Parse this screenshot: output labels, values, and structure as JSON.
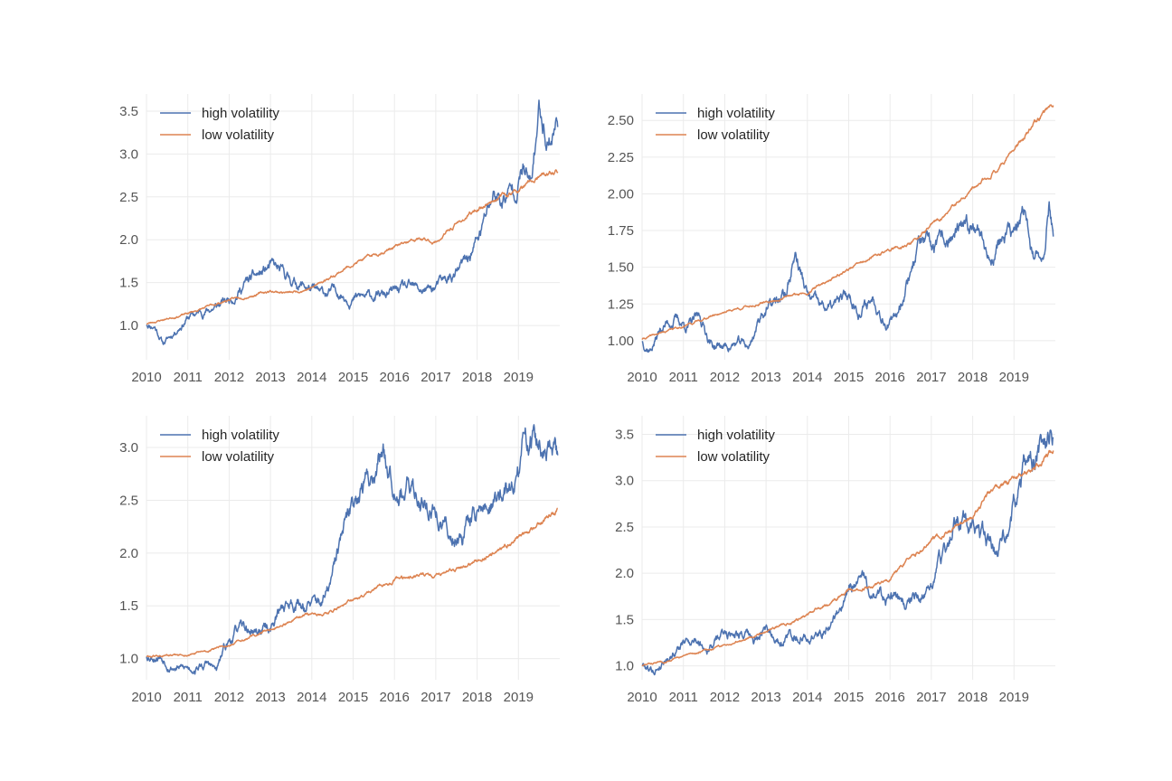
{
  "colors": {
    "high": "#4c72b0",
    "low": "#dd8452",
    "grid": "#ebebeb",
    "tick_text": "#555555"
  },
  "chart_data": [
    {
      "type": "line",
      "panel": "top-left",
      "xlim": [
        2010.0,
        2020.0
      ],
      "ylim": [
        0.6,
        3.7
      ],
      "xticks": [
        2010,
        2011,
        2012,
        2013,
        2014,
        2015,
        2016,
        2017,
        2018,
        2019
      ],
      "xtick_labels": [
        "2010",
        "2011",
        "2012",
        "2013",
        "2014",
        "2015",
        "2016",
        "2017",
        "2018",
        "2019"
      ],
      "yticks": [
        1.0,
        1.5,
        2.0,
        2.5,
        3.0,
        3.5
      ],
      "ytick_labels": [
        "1.0",
        "1.5",
        "2.0",
        "2.5",
        "3.0",
        "3.5"
      ],
      "grid": true,
      "legend": "top-left",
      "series": [
        {
          "name": "high volatility",
          "color": "#4c72b0",
          "noise": 0.025,
          "seed": 11,
          "x": [
            2010.0,
            2010.2,
            2010.4,
            2010.6,
            2010.8,
            2011.0,
            2011.3,
            2011.7,
            2012.0,
            2012.4,
            2012.8,
            2013.0,
            2013.3,
            2013.6,
            2013.9,
            2014.2,
            2014.6,
            2015.0,
            2015.4,
            2015.8,
            2016.2,
            2016.6,
            2016.9,
            2017.2,
            2017.5,
            2017.8,
            2018.1,
            2018.4,
            2018.6,
            2018.9,
            2019.1,
            2019.3,
            2019.5,
            2019.6,
            2019.7,
            2019.8,
            2019.95
          ],
          "y": [
            1.02,
            1.0,
            0.8,
            0.88,
            1.0,
            1.1,
            1.15,
            1.22,
            1.3,
            1.5,
            1.6,
            1.68,
            1.58,
            1.5,
            1.45,
            1.35,
            1.4,
            1.32,
            1.33,
            1.35,
            1.42,
            1.4,
            1.42,
            1.5,
            1.6,
            1.78,
            2.1,
            2.55,
            2.45,
            2.6,
            2.85,
            2.6,
            3.5,
            3.4,
            3.2,
            3.25,
            3.4
          ]
        },
        {
          "name": "low volatility",
          "color": "#dd8452",
          "noise": 0.006,
          "seed": 23,
          "x": [
            2010.0,
            2011.0,
            2012.0,
            2013.0,
            2013.5,
            2014.0,
            2015.0,
            2016.0,
            2016.6,
            2017.0,
            2017.5,
            2018.0,
            2018.5,
            2019.0,
            2019.5,
            2019.95
          ],
          "y": [
            1.02,
            1.14,
            1.3,
            1.4,
            1.38,
            1.44,
            1.72,
            1.92,
            2.0,
            1.97,
            2.18,
            2.35,
            2.5,
            2.57,
            2.72,
            2.8
          ]
        }
      ]
    },
    {
      "type": "line",
      "panel": "top-right",
      "xlim": [
        2010.0,
        2020.0
      ],
      "ylim": [
        0.87,
        2.68
      ],
      "xticks": [
        2010,
        2011,
        2012,
        2013,
        2014,
        2015,
        2016,
        2017,
        2018,
        2019
      ],
      "xtick_labels": [
        "2010",
        "2011",
        "2012",
        "2013",
        "2014",
        "2015",
        "2016",
        "2017",
        "2018",
        "2019"
      ],
      "yticks": [
        1.0,
        1.25,
        1.5,
        1.75,
        2.0,
        2.25,
        2.5
      ],
      "ytick_labels": [
        "1.00",
        "1.25",
        "1.50",
        "1.75",
        "2.00",
        "2.25",
        "2.50"
      ],
      "grid": true,
      "legend": "top-left",
      "series": [
        {
          "name": "high volatility",
          "color": "#4c72b0",
          "noise": 0.02,
          "seed": 37,
          "x": [
            2010.0,
            2010.2,
            2010.5,
            2010.8,
            2011.1,
            2011.4,
            2011.7,
            2012.0,
            2012.3,
            2012.6,
            2012.9,
            2013.2,
            2013.5,
            2013.7,
            2014.0,
            2014.3,
            2014.6,
            2015.0,
            2015.3,
            2015.6,
            2015.9,
            2016.1,
            2016.4,
            2016.7,
            2017.0,
            2017.3,
            2017.6,
            2017.9,
            2018.1,
            2018.4,
            2018.7,
            2019.0,
            2019.3,
            2019.5,
            2019.7,
            2019.85,
            2019.95
          ],
          "y": [
            1.0,
            0.95,
            1.1,
            1.15,
            1.1,
            1.15,
            0.97,
            0.96,
            0.98,
            0.96,
            1.2,
            1.25,
            1.32,
            1.6,
            1.3,
            1.22,
            1.22,
            1.3,
            1.2,
            1.3,
            1.15,
            1.12,
            1.4,
            1.68,
            1.6,
            1.65,
            1.72,
            1.72,
            1.85,
            1.55,
            1.7,
            1.72,
            1.85,
            1.52,
            1.6,
            1.95,
            1.76
          ]
        },
        {
          "name": "low volatility",
          "color": "#dd8452",
          "noise": 0.004,
          "seed": 41,
          "x": [
            2010.0,
            2011.0,
            2012.0,
            2013.0,
            2014.0,
            2015.0,
            2016.0,
            2016.5,
            2017.0,
            2018.0,
            2018.5,
            2019.0,
            2019.5,
            2019.95
          ],
          "y": [
            1.01,
            1.1,
            1.2,
            1.26,
            1.33,
            1.49,
            1.62,
            1.66,
            1.78,
            2.02,
            2.15,
            2.3,
            2.47,
            2.62
          ]
        }
      ]
    },
    {
      "type": "line",
      "panel": "bottom-left",
      "xlim": [
        2010.0,
        2020.0
      ],
      "ylim": [
        0.8,
        3.3
      ],
      "xticks": [
        2010,
        2011,
        2012,
        2013,
        2014,
        2015,
        2016,
        2017,
        2018,
        2019
      ],
      "xtick_labels": [
        "2010",
        "2011",
        "2012",
        "2013",
        "2014",
        "2015",
        "2016",
        "2017",
        "2018",
        "2019"
      ],
      "yticks": [
        1.0,
        1.5,
        2.0,
        2.5,
        3.0
      ],
      "ytick_labels": [
        "1.0",
        "1.5",
        "2.0",
        "2.5",
        "3.0"
      ],
      "grid": true,
      "legend": "top-left",
      "series": [
        {
          "name": "high volatility",
          "color": "#4c72b0",
          "noise": 0.025,
          "seed": 53,
          "x": [
            2010.0,
            2010.3,
            2010.6,
            2010.9,
            2011.2,
            2011.5,
            2011.7,
            2011.9,
            2012.2,
            2012.6,
            2013.0,
            2013.3,
            2013.6,
            2014.0,
            2014.3,
            2014.5,
            2014.7,
            2014.9,
            2015.1,
            2015.4,
            2015.7,
            2016.0,
            2016.3,
            2016.6,
            2016.9,
            2017.1,
            2017.4,
            2017.7,
            2018.0,
            2018.3,
            2018.6,
            2018.9,
            2019.1,
            2019.3,
            2019.6,
            2019.8,
            2019.95
          ],
          "y": [
            1.03,
            1.05,
            0.95,
            0.9,
            0.92,
            0.95,
            0.88,
            1.1,
            1.28,
            1.25,
            1.3,
            1.5,
            1.55,
            1.5,
            1.55,
            1.75,
            2.1,
            2.3,
            2.6,
            2.7,
            3.0,
            2.75,
            2.6,
            2.55,
            2.45,
            2.3,
            2.15,
            2.25,
            2.4,
            2.45,
            2.55,
            2.6,
            2.95,
            3.1,
            2.95,
            2.9,
            2.85
          ]
        },
        {
          "name": "low volatility",
          "color": "#dd8452",
          "noise": 0.006,
          "seed": 61,
          "x": [
            2010.0,
            2011.0,
            2012.0,
            2013.0,
            2014.0,
            2014.4,
            2015.0,
            2016.0,
            2016.5,
            2017.0,
            2017.5,
            2018.0,
            2018.5,
            2019.0,
            2019.5,
            2019.95
          ],
          "y": [
            1.02,
            1.03,
            1.12,
            1.28,
            1.42,
            1.44,
            1.55,
            1.75,
            1.8,
            1.79,
            1.84,
            1.92,
            2.02,
            2.14,
            2.28,
            2.4
          ]
        }
      ]
    },
    {
      "type": "line",
      "panel": "bottom-right",
      "xlim": [
        2010.0,
        2020.0
      ],
      "ylim": [
        0.85,
        3.7
      ],
      "xticks": [
        2010,
        2011,
        2012,
        2013,
        2014,
        2015,
        2016,
        2017,
        2018,
        2019
      ],
      "xtick_labels": [
        "2010",
        "2011",
        "2012",
        "2013",
        "2014",
        "2015",
        "2016",
        "2017",
        "2018",
        "2019"
      ],
      "yticks": [
        1.0,
        1.5,
        2.0,
        2.5,
        3.0,
        3.5
      ],
      "ytick_labels": [
        "1.0",
        "1.5",
        "2.0",
        "2.5",
        "3.0",
        "3.5"
      ],
      "grid": true,
      "legend": "top-left",
      "series": [
        {
          "name": "high volatility",
          "color": "#4c72b0",
          "noise": 0.025,
          "seed": 79,
          "x": [
            2010.0,
            2010.3,
            2010.6,
            2011.0,
            2011.3,
            2011.6,
            2012.0,
            2012.4,
            2012.7,
            2013.0,
            2013.3,
            2013.6,
            2014.0,
            2014.3,
            2014.6,
            2015.0,
            2015.3,
            2015.6,
            2016.0,
            2016.3,
            2016.6,
            2017.0,
            2017.3,
            2017.6,
            2017.9,
            2018.2,
            2018.5,
            2018.8,
            2019.0,
            2019.3,
            2019.6,
            2019.8,
            2019.95
          ],
          "y": [
            1.02,
            0.95,
            1.1,
            1.25,
            1.3,
            1.2,
            1.35,
            1.4,
            1.25,
            1.35,
            1.3,
            1.35,
            1.3,
            1.35,
            1.5,
            1.75,
            1.95,
            1.8,
            1.75,
            1.65,
            1.7,
            1.85,
            2.2,
            2.6,
            2.45,
            2.35,
            2.25,
            2.5,
            2.8,
            3.15,
            3.3,
            3.4,
            3.45
          ]
        },
        {
          "name": "low volatility",
          "color": "#dd8452",
          "noise": 0.006,
          "seed": 83,
          "x": [
            2010.0,
            2011.0,
            2012.0,
            2013.0,
            2014.0,
            2015.0,
            2015.5,
            2016.0,
            2017.0,
            2018.0,
            2018.5,
            2019.0,
            2019.5,
            2019.95
          ],
          "y": [
            1.0,
            1.1,
            1.22,
            1.38,
            1.55,
            1.8,
            1.85,
            1.95,
            2.35,
            2.62,
            2.9,
            3.0,
            3.12,
            3.32
          ]
        }
      ]
    }
  ]
}
